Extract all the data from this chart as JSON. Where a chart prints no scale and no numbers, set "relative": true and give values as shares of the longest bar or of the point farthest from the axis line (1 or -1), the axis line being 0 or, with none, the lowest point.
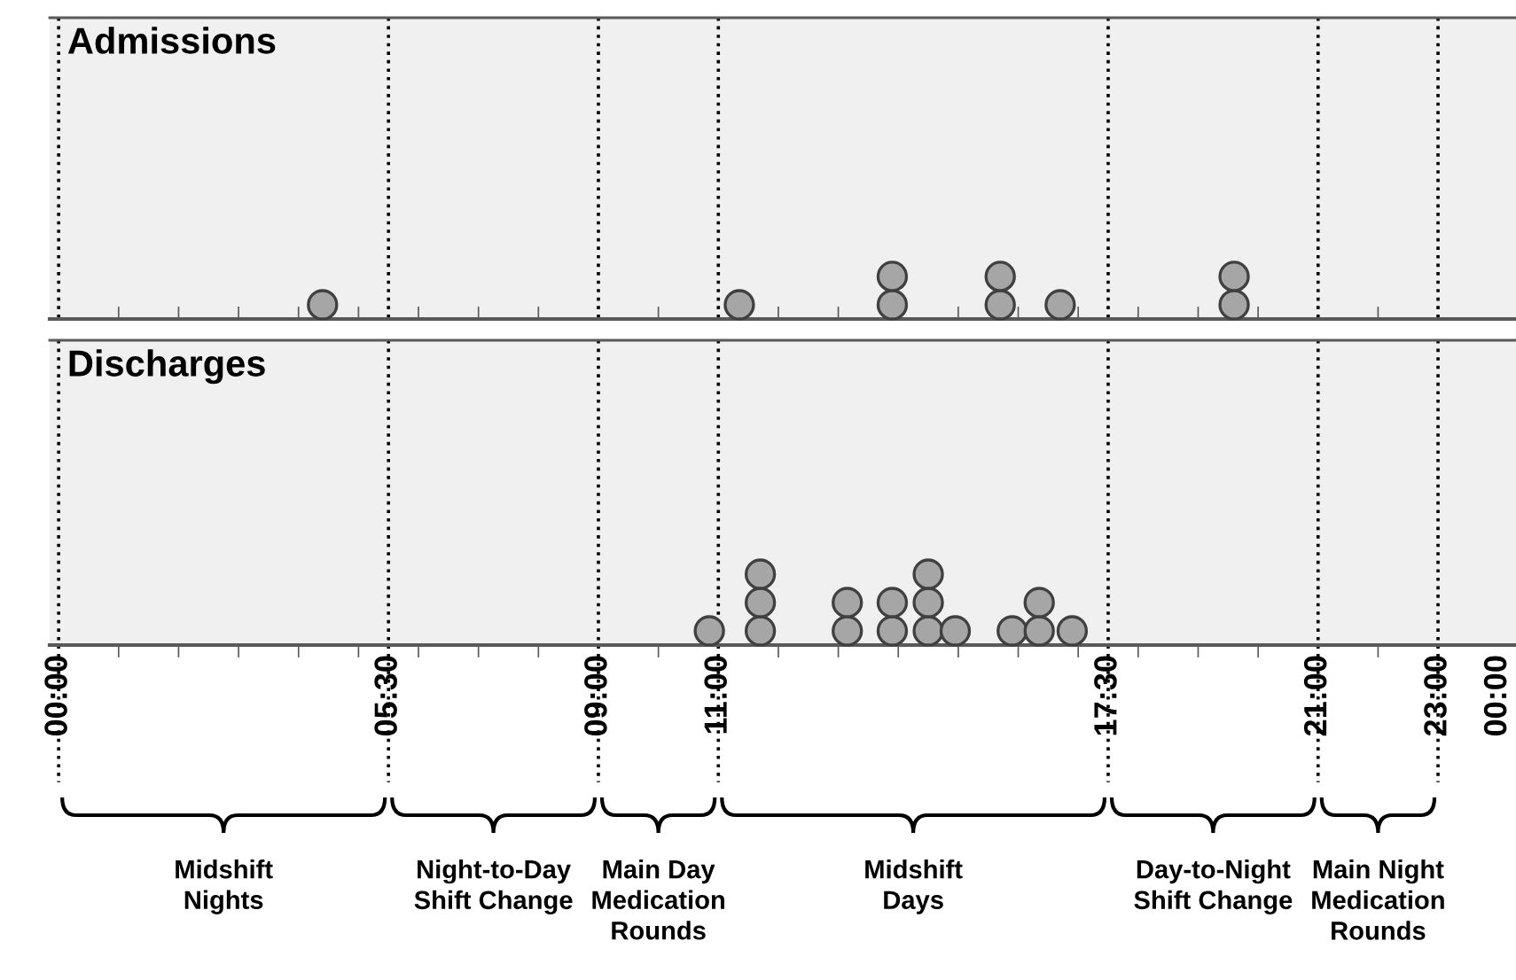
{
  "chart_data": [
    {
      "type": "scatter",
      "title": "Admissions",
      "relative": true,
      "series": [
        {
          "color": "#a6a6a6",
          "x": [
            4.4,
            11.35,
            13.9,
            13.9,
            15.7,
            15.7,
            16.7,
            19.6,
            19.6
          ],
          "values": [
            0.333,
            0.333,
            0.333,
            1,
            0.333,
            1,
            0.333,
            0.333,
            1
          ]
        }
      ],
      "marker": "circle",
      "xlim": [
        -0.15,
        24.3
      ],
      "xticks": [
        {
          "value": 1,
          "label": null
        },
        {
          "value": 2,
          "label": null
        },
        {
          "value": 3,
          "label": null
        },
        {
          "value": 4,
          "label": null
        },
        {
          "value": 5,
          "label": null
        },
        {
          "value": 6,
          "label": null
        },
        {
          "value": 7,
          "label": null
        },
        {
          "value": 8,
          "label": null
        },
        {
          "value": 10,
          "label": null
        },
        {
          "value": 12,
          "label": null
        },
        {
          "value": 13,
          "label": null
        },
        {
          "value": 14,
          "label": null
        },
        {
          "value": 15,
          "label": null
        },
        {
          "value": 16,
          "label": null
        },
        {
          "value": 17,
          "label": null
        },
        {
          "value": 18,
          "label": null
        },
        {
          "value": 19,
          "label": null
        },
        {
          "value": 20,
          "label": null
        },
        {
          "value": 22,
          "label": null
        }
      ],
      "ref_lines": [
        {
          "axis": "x",
          "value": 0,
          "line_style": "dotted"
        },
        {
          "axis": "x",
          "value": 5.5,
          "line_style": "dotted"
        },
        {
          "axis": "x",
          "value": 9,
          "line_style": "dotted"
        },
        {
          "axis": "x",
          "value": 11,
          "line_style": "dotted"
        },
        {
          "axis": "x",
          "value": 17.5,
          "line_style": "dotted"
        },
        {
          "axis": "x",
          "value": 21,
          "line_style": "dotted"
        },
        {
          "axis": "x",
          "value": 23,
          "line_style": "dotted"
        }
      ],
      "tick_labels": false
    },
    {
      "type": "scatter",
      "title": "Discharges",
      "relative": true,
      "series": [
        {
          "color": "#a6a6a6",
          "x": [
            10.85,
            11.7,
            11.7,
            11.7,
            13.15,
            13.15,
            13.9,
            13.9,
            14.5,
            14.5,
            14.5,
            14.95,
            15.9,
            16.35,
            16.35,
            16.9
          ],
          "values": [
            0.2,
            0.2,
            0.6,
            1,
            0.2,
            0.6,
            0.2,
            0.6,
            0.2,
            0.6,
            1,
            0.2,
            0.2,
            0.2,
            0.6,
            0.2
          ]
        }
      ],
      "marker": "circle",
      "xlim": [
        -0.15,
        24.3
      ],
      "xticks": [
        {
          "value": 0,
          "label": "00:00"
        },
        {
          "value": 1,
          "label": null
        },
        {
          "value": 2,
          "label": null
        },
        {
          "value": 3,
          "label": null
        },
        {
          "value": 4,
          "label": null
        },
        {
          "value": 5,
          "label": null
        },
        {
          "value": 5.5,
          "label": "05:30"
        },
        {
          "value": 6,
          "label": null
        },
        {
          "value": 7,
          "label": null
        },
        {
          "value": 8,
          "label": null
        },
        {
          "value": 9,
          "label": "09:00"
        },
        {
          "value": 10,
          "label": null
        },
        {
          "value": 11,
          "label": "11:00"
        },
        {
          "value": 12,
          "label": null
        },
        {
          "value": 13,
          "label": null
        },
        {
          "value": 14,
          "label": null
        },
        {
          "value": 15,
          "label": null
        },
        {
          "value": 16,
          "label": null
        },
        {
          "value": 17,
          "label": null
        },
        {
          "value": 17.5,
          "label": "17:30"
        },
        {
          "value": 18,
          "label": null
        },
        {
          "value": 19,
          "label": null
        },
        {
          "value": 20,
          "label": null
        },
        {
          "value": 21,
          "label": "21:00"
        },
        {
          "value": 22,
          "label": null
        },
        {
          "value": 23,
          "label": "23:00"
        },
        {
          "value": 24,
          "label": "00:00"
        }
      ],
      "ref_lines": [
        {
          "axis": "x",
          "value": 0,
          "line_style": "dotted"
        },
        {
          "axis": "x",
          "value": 5.5,
          "line_style": "dotted"
        },
        {
          "axis": "x",
          "value": 9,
          "line_style": "dotted"
        },
        {
          "axis": "x",
          "value": 11,
          "line_style": "dotted"
        },
        {
          "axis": "x",
          "value": 17.5,
          "line_style": "dotted"
        },
        {
          "axis": "x",
          "value": 21,
          "line_style": "dotted"
        },
        {
          "axis": "x",
          "value": 23,
          "line_style": "dotted"
        }
      ],
      "annotations": [
        "Midshift\nNights",
        "Night-to-Day\nShift Change",
        "Main Day\nMedication\nRounds",
        "Midshift\nDays",
        "Day-to-Night\nShift Change",
        "Main Night\nMedication\nRounds"
      ],
      "tick_labels": "x"
    }
  ]
}
